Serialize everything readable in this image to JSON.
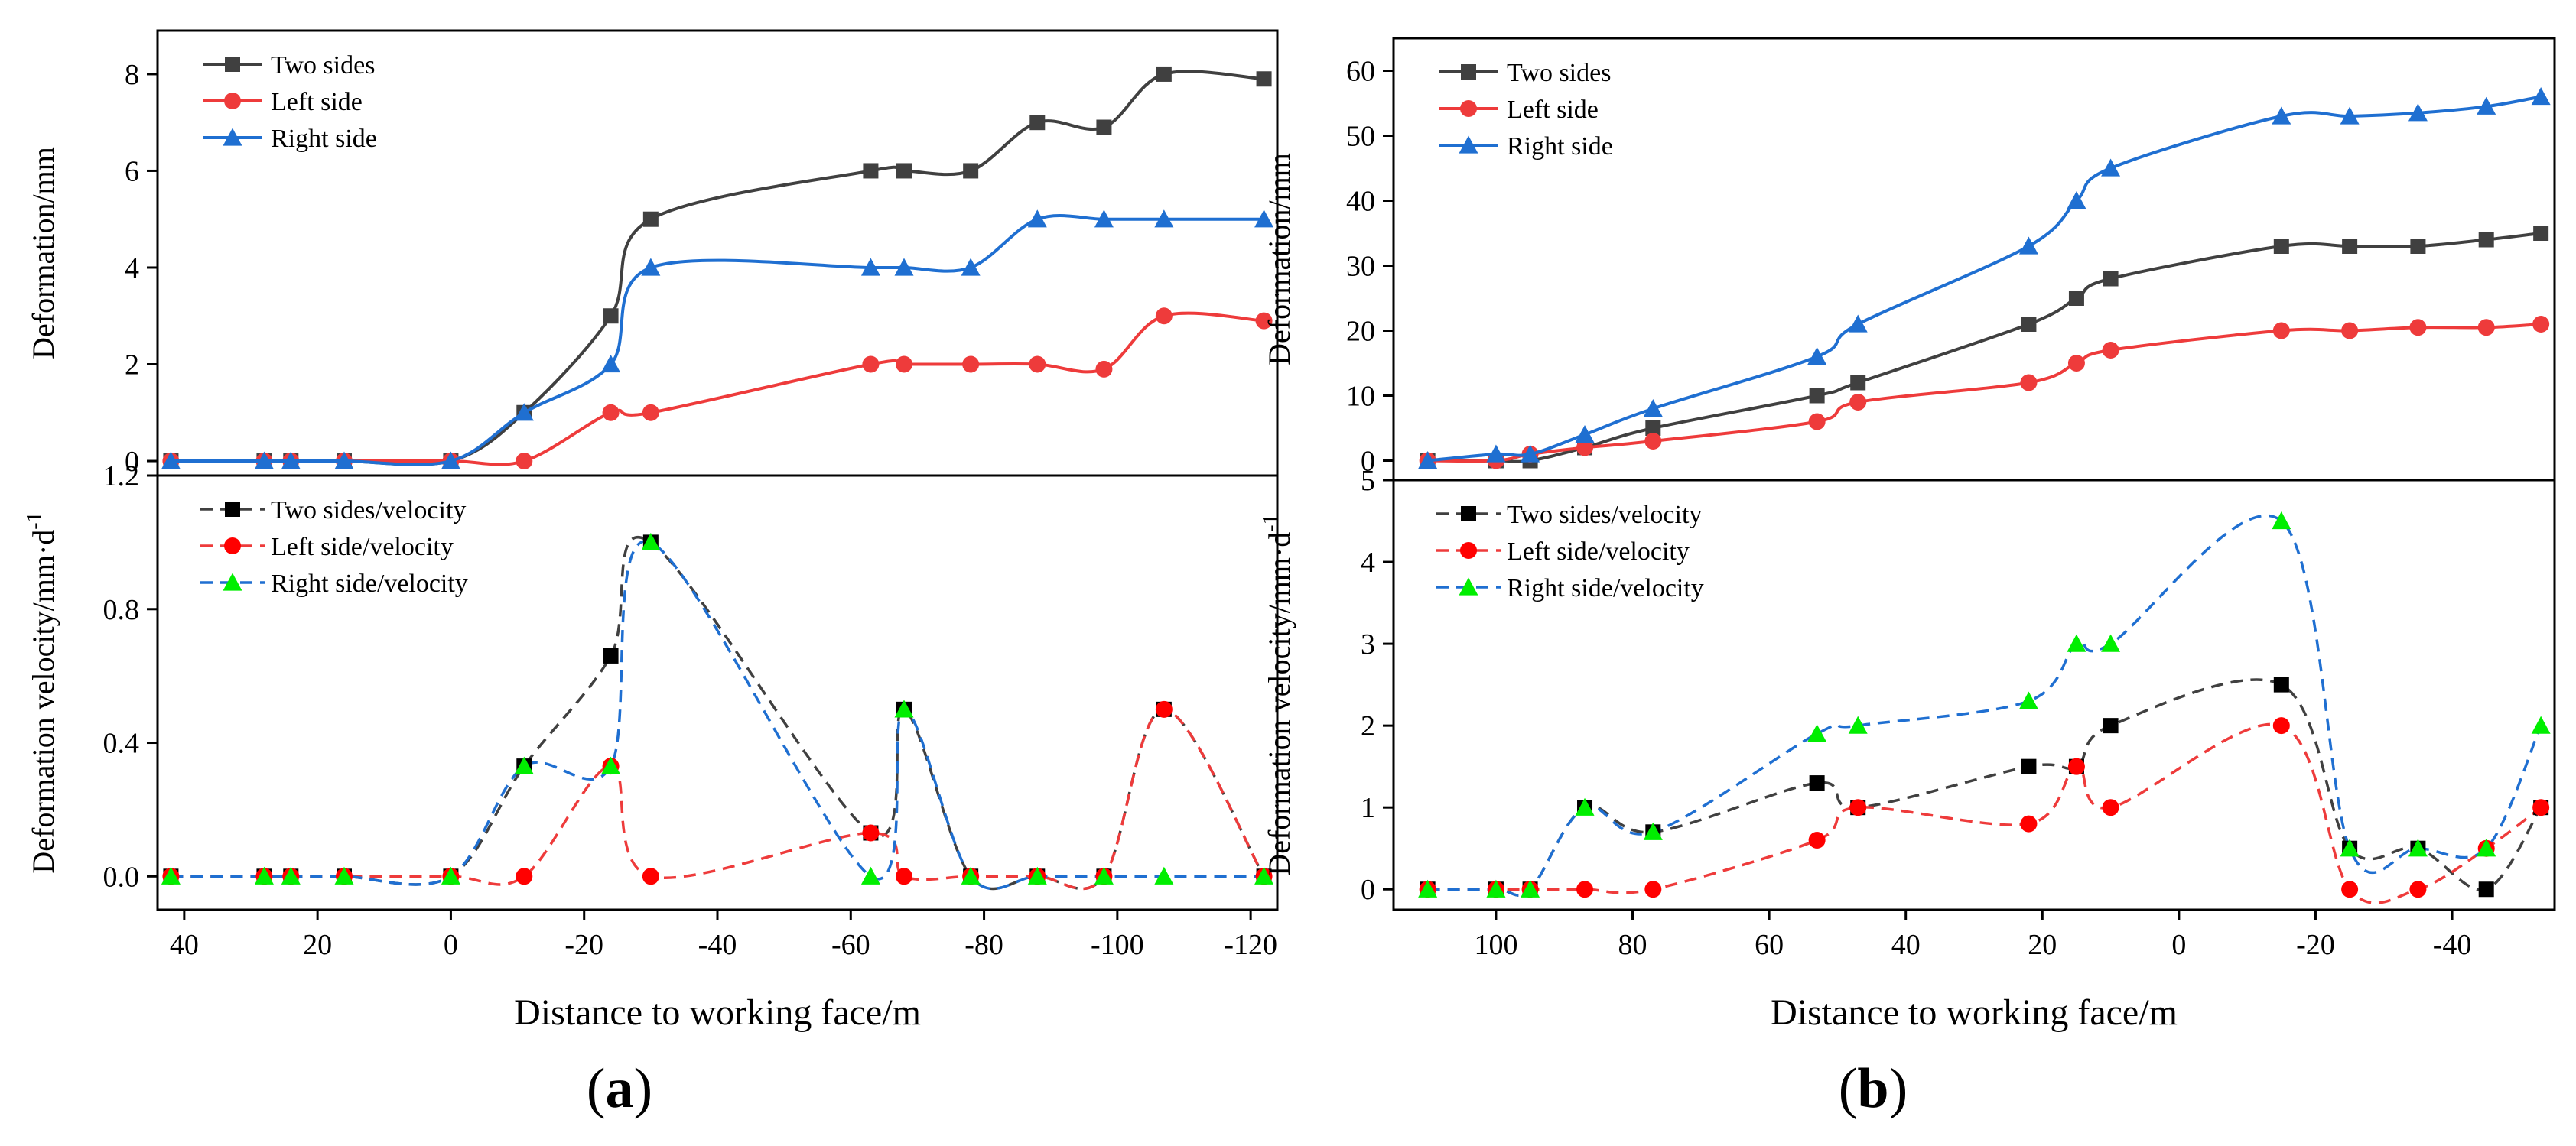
{
  "chart_data": [
    {
      "id": "a",
      "panel_label": "(a)",
      "xlabel": "Distance to working face/m",
      "xlim": [
        44,
        -124
      ],
      "xticks": [
        40,
        20,
        0,
        -20,
        -40,
        -60,
        -80,
        -100,
        -120
      ],
      "x_tick_labels": [
        "40",
        "20",
        "0",
        "-20",
        "-40",
        "-60",
        "-80",
        "-100",
        "-120"
      ],
      "x": [
        42,
        28,
        24,
        16,
        0,
        -11,
        -24,
        -30,
        -63,
        -68,
        -78,
        -88,
        -98,
        -107,
        -122
      ],
      "top": {
        "type": "line",
        "ylabel": "Deformation/mm",
        "ylim": [
          -0.3,
          8.9
        ],
        "yticks": [
          0,
          2,
          4,
          6,
          8
        ],
        "y_tick_labels": [
          "0",
          "2",
          "4",
          "6",
          "8"
        ],
        "series": [
          {
            "name": "Two sides",
            "color": "#404040",
            "marker": "square",
            "values": [
              0,
              0,
              0,
              0,
              0,
              1,
              3,
              5,
              6,
              6,
              6,
              7,
              6.9,
              8,
              7.9
            ]
          },
          {
            "name": "Left side",
            "color": "#ee3b3b",
            "marker": "circle",
            "values": [
              0,
              0,
              0,
              0,
              0,
              0,
              1,
              1,
              2,
              2,
              2,
              2,
              1.9,
              3,
              2.9
            ]
          },
          {
            "name": "Right side",
            "color": "#1f6fd1",
            "marker": "triangle",
            "values": [
              0,
              0,
              0,
              0,
              0,
              1,
              2,
              4,
              4,
              4,
              4,
              5,
              5,
              5,
              5
            ]
          }
        ]
      },
      "bottom": {
        "type": "scatter",
        "ylabel": "Deformation velocity/mm·d",
        "ylabel_superscript": "-1",
        "ylim": [
          -0.1,
          1.2
        ],
        "yticks": [
          0,
          0.4,
          0.8,
          1.2
        ],
        "y_tick_labels": [
          "0.0",
          "0.4",
          "0.8",
          "1.2"
        ],
        "series": [
          {
            "name": "Two sides/velocity",
            "line_color": "#404040",
            "color": "#000000",
            "marker": "square",
            "values": [
              0,
              0,
              0,
              0,
              0,
              0.33,
              0.66,
              1.0,
              0.13,
              0.5,
              0,
              0,
              0,
              0.5,
              0
            ]
          },
          {
            "name": "Left side/velocity",
            "line_color": "#ee3b3b",
            "color": "#ff0000",
            "marker": "circle",
            "values": [
              0,
              0,
              0,
              0,
              0,
              0,
              0.33,
              0,
              0.13,
              0,
              0,
              0,
              0,
              0.5,
              0
            ]
          },
          {
            "name": "Right side/velocity",
            "line_color": "#1f6fd1",
            "color": "#00ee00",
            "marker": "triangle",
            "values": [
              0,
              0,
              0,
              0,
              0,
              0.33,
              0.33,
              1.0,
              0,
              0.5,
              0,
              0,
              0,
              0,
              0
            ]
          }
        ]
      }
    },
    {
      "id": "b",
      "panel_label": "(b)",
      "xlabel": "Distance to working face/m",
      "xlim": [
        115,
        -55
      ],
      "xticks": [
        100,
        80,
        60,
        40,
        20,
        0,
        -20,
        -40
      ],
      "x_tick_labels": [
        "100",
        "80",
        "60",
        "40",
        "20",
        "0",
        "-20",
        "-40"
      ],
      "x": [
        110,
        100,
        95,
        87,
        77,
        53,
        47,
        22,
        15,
        10,
        -15,
        -25,
        -35,
        -45,
        -53
      ],
      "top": {
        "type": "line",
        "ylabel": "Deformation/mm",
        "ylim": [
          -3,
          65
        ],
        "yticks": [
          0,
          10,
          20,
          30,
          40,
          50,
          60
        ],
        "y_tick_labels": [
          "0",
          "10",
          "20",
          "30",
          "40",
          "50",
          "60"
        ],
        "series": [
          {
            "name": "Two sides",
            "color": "#404040",
            "marker": "square",
            "values": [
              0,
              0,
              0,
              2,
              5,
              10,
              12,
              21,
              25,
              28,
              33,
              33,
              33,
              34,
              35
            ]
          },
          {
            "name": "Left side",
            "color": "#ee3b3b",
            "marker": "circle",
            "values": [
              0,
              0,
              1,
              2,
              3,
              6,
              9,
              12,
              15,
              17,
              20,
              20,
              20.5,
              20.5,
              21
            ]
          },
          {
            "name": "Right side",
            "color": "#1f6fd1",
            "marker": "triangle",
            "values": [
              0,
              1,
              1,
              4,
              8,
              16,
              21,
              33,
              40,
              45,
              53,
              53,
              53.5,
              54.5,
              56
            ]
          }
        ]
      },
      "bottom": {
        "type": "scatter",
        "ylabel": "Deformation velocity/mm·d",
        "ylabel_superscript": "-1",
        "ylim": [
          -0.25,
          5
        ],
        "yticks": [
          0,
          1,
          2,
          3,
          4,
          5
        ],
        "y_tick_labels": [
          "0",
          "1",
          "2",
          "3",
          "4",
          "5"
        ],
        "series": [
          {
            "name": "Two sides/velocity",
            "line_color": "#404040",
            "color": "#000000",
            "marker": "square",
            "values": [
              0,
              0,
              0,
              1,
              0.7,
              1.3,
              1.0,
              1.5,
              1.5,
              2.0,
              2.5,
              0.5,
              0.5,
              0,
              1.0
            ]
          },
          {
            "name": "Left side/velocity",
            "line_color": "#ee3b3b",
            "color": "#ff0000",
            "marker": "circle",
            "values": [
              0,
              0,
              0,
              0,
              0,
              0.6,
              1.0,
              0.8,
              1.5,
              1.0,
              2.0,
              0,
              0,
              0.5,
              1.0
            ]
          },
          {
            "name": "Right side/velocity",
            "line_color": "#1f6fd1",
            "color": "#00ee00",
            "marker": "triangle",
            "values": [
              0,
              0,
              0,
              1,
              0.7,
              1.9,
              2.0,
              2.3,
              3.0,
              3.0,
              4.5,
              0.5,
              0.5,
              0.5,
              2.0
            ]
          }
        ]
      }
    }
  ]
}
